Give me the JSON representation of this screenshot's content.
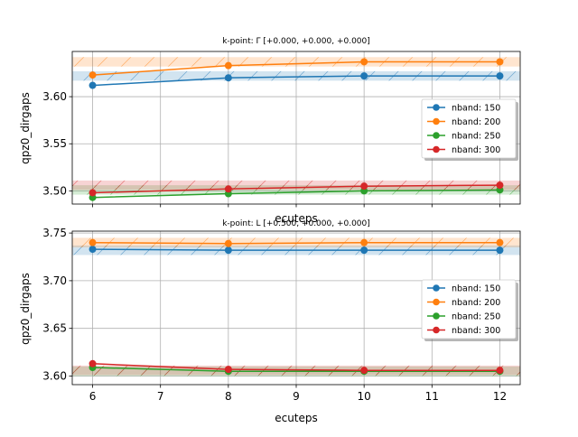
{
  "chart_data": [
    {
      "type": "line",
      "title": "k-point: Γ [+0.000, +0.000, +0.000]",
      "xlabel": "ecuteps",
      "ylabel": "qpz0_dirgaps",
      "xlim": [
        5.7,
        12.3
      ],
      "ylim": [
        3.486,
        3.648
      ],
      "xticks": [
        6,
        7,
        8,
        9,
        10,
        11,
        12
      ],
      "xtick_labels": [
        "",
        "",
        "",
        "",
        "",
        "",
        ""
      ],
      "yticks": [
        3.5,
        3.55,
        3.6
      ],
      "ytick_labels": [
        "3.50",
        "3.55",
        "3.60"
      ],
      "grid": true,
      "legend_position": "center-right",
      "x": [
        6,
        8,
        10,
        12
      ],
      "series": [
        {
          "name": "nband: 150",
          "color": "#1f77b4",
          "values": [
            3.612,
            3.62,
            3.622,
            3.622
          ],
          "band": [
            3.617,
            3.627
          ]
        },
        {
          "name": "nband: 200",
          "color": "#ff7f0e",
          "values": [
            3.623,
            3.633,
            3.637,
            3.637
          ],
          "band": [
            3.632,
            3.642
          ]
        },
        {
          "name": "nband: 250",
          "color": "#2ca02c",
          "values": [
            3.493,
            3.497,
            3.5,
            3.501
          ],
          "band": [
            3.496,
            3.506
          ]
        },
        {
          "name": "nband: 300",
          "color": "#d62728",
          "values": [
            3.498,
            3.502,
            3.505,
            3.506
          ],
          "band": [
            3.501,
            3.511
          ]
        }
      ]
    },
    {
      "type": "line",
      "title": "k-point: L [+0.500, +0.000, +0.000]",
      "xlabel": "ecuteps",
      "ylabel": "qpz0_dirgaps",
      "xlim": [
        5.7,
        12.3
      ],
      "ylim": [
        3.591,
        3.752
      ],
      "xticks": [
        6,
        7,
        8,
        9,
        10,
        11,
        12
      ],
      "xtick_labels": [
        "6",
        "7",
        "8",
        "9",
        "10",
        "11",
        "12"
      ],
      "yticks": [
        3.6,
        3.65,
        3.7,
        3.75
      ],
      "ytick_labels": [
        "3.60",
        "3.65",
        "3.70",
        "3.75"
      ],
      "grid": true,
      "legend_position": "center-right",
      "x": [
        6,
        8,
        10,
        12
      ],
      "series": [
        {
          "name": "nband: 150",
          "color": "#1f77b4",
          "values": [
            3.733,
            3.732,
            3.732,
            3.732
          ],
          "band": [
            3.727,
            3.737
          ]
        },
        {
          "name": "nband: 200",
          "color": "#ff7f0e",
          "values": [
            3.74,
            3.739,
            3.74,
            3.74
          ],
          "band": [
            3.735,
            3.745
          ]
        },
        {
          "name": "nband: 250",
          "color": "#2ca02c",
          "values": [
            3.609,
            3.605,
            3.605,
            3.605
          ],
          "band": [
            3.6,
            3.61
          ]
        },
        {
          "name": "nband: 300",
          "color": "#d62728",
          "values": [
            3.613,
            3.607,
            3.606,
            3.606
          ],
          "band": [
            3.601,
            3.611
          ]
        }
      ]
    }
  ]
}
